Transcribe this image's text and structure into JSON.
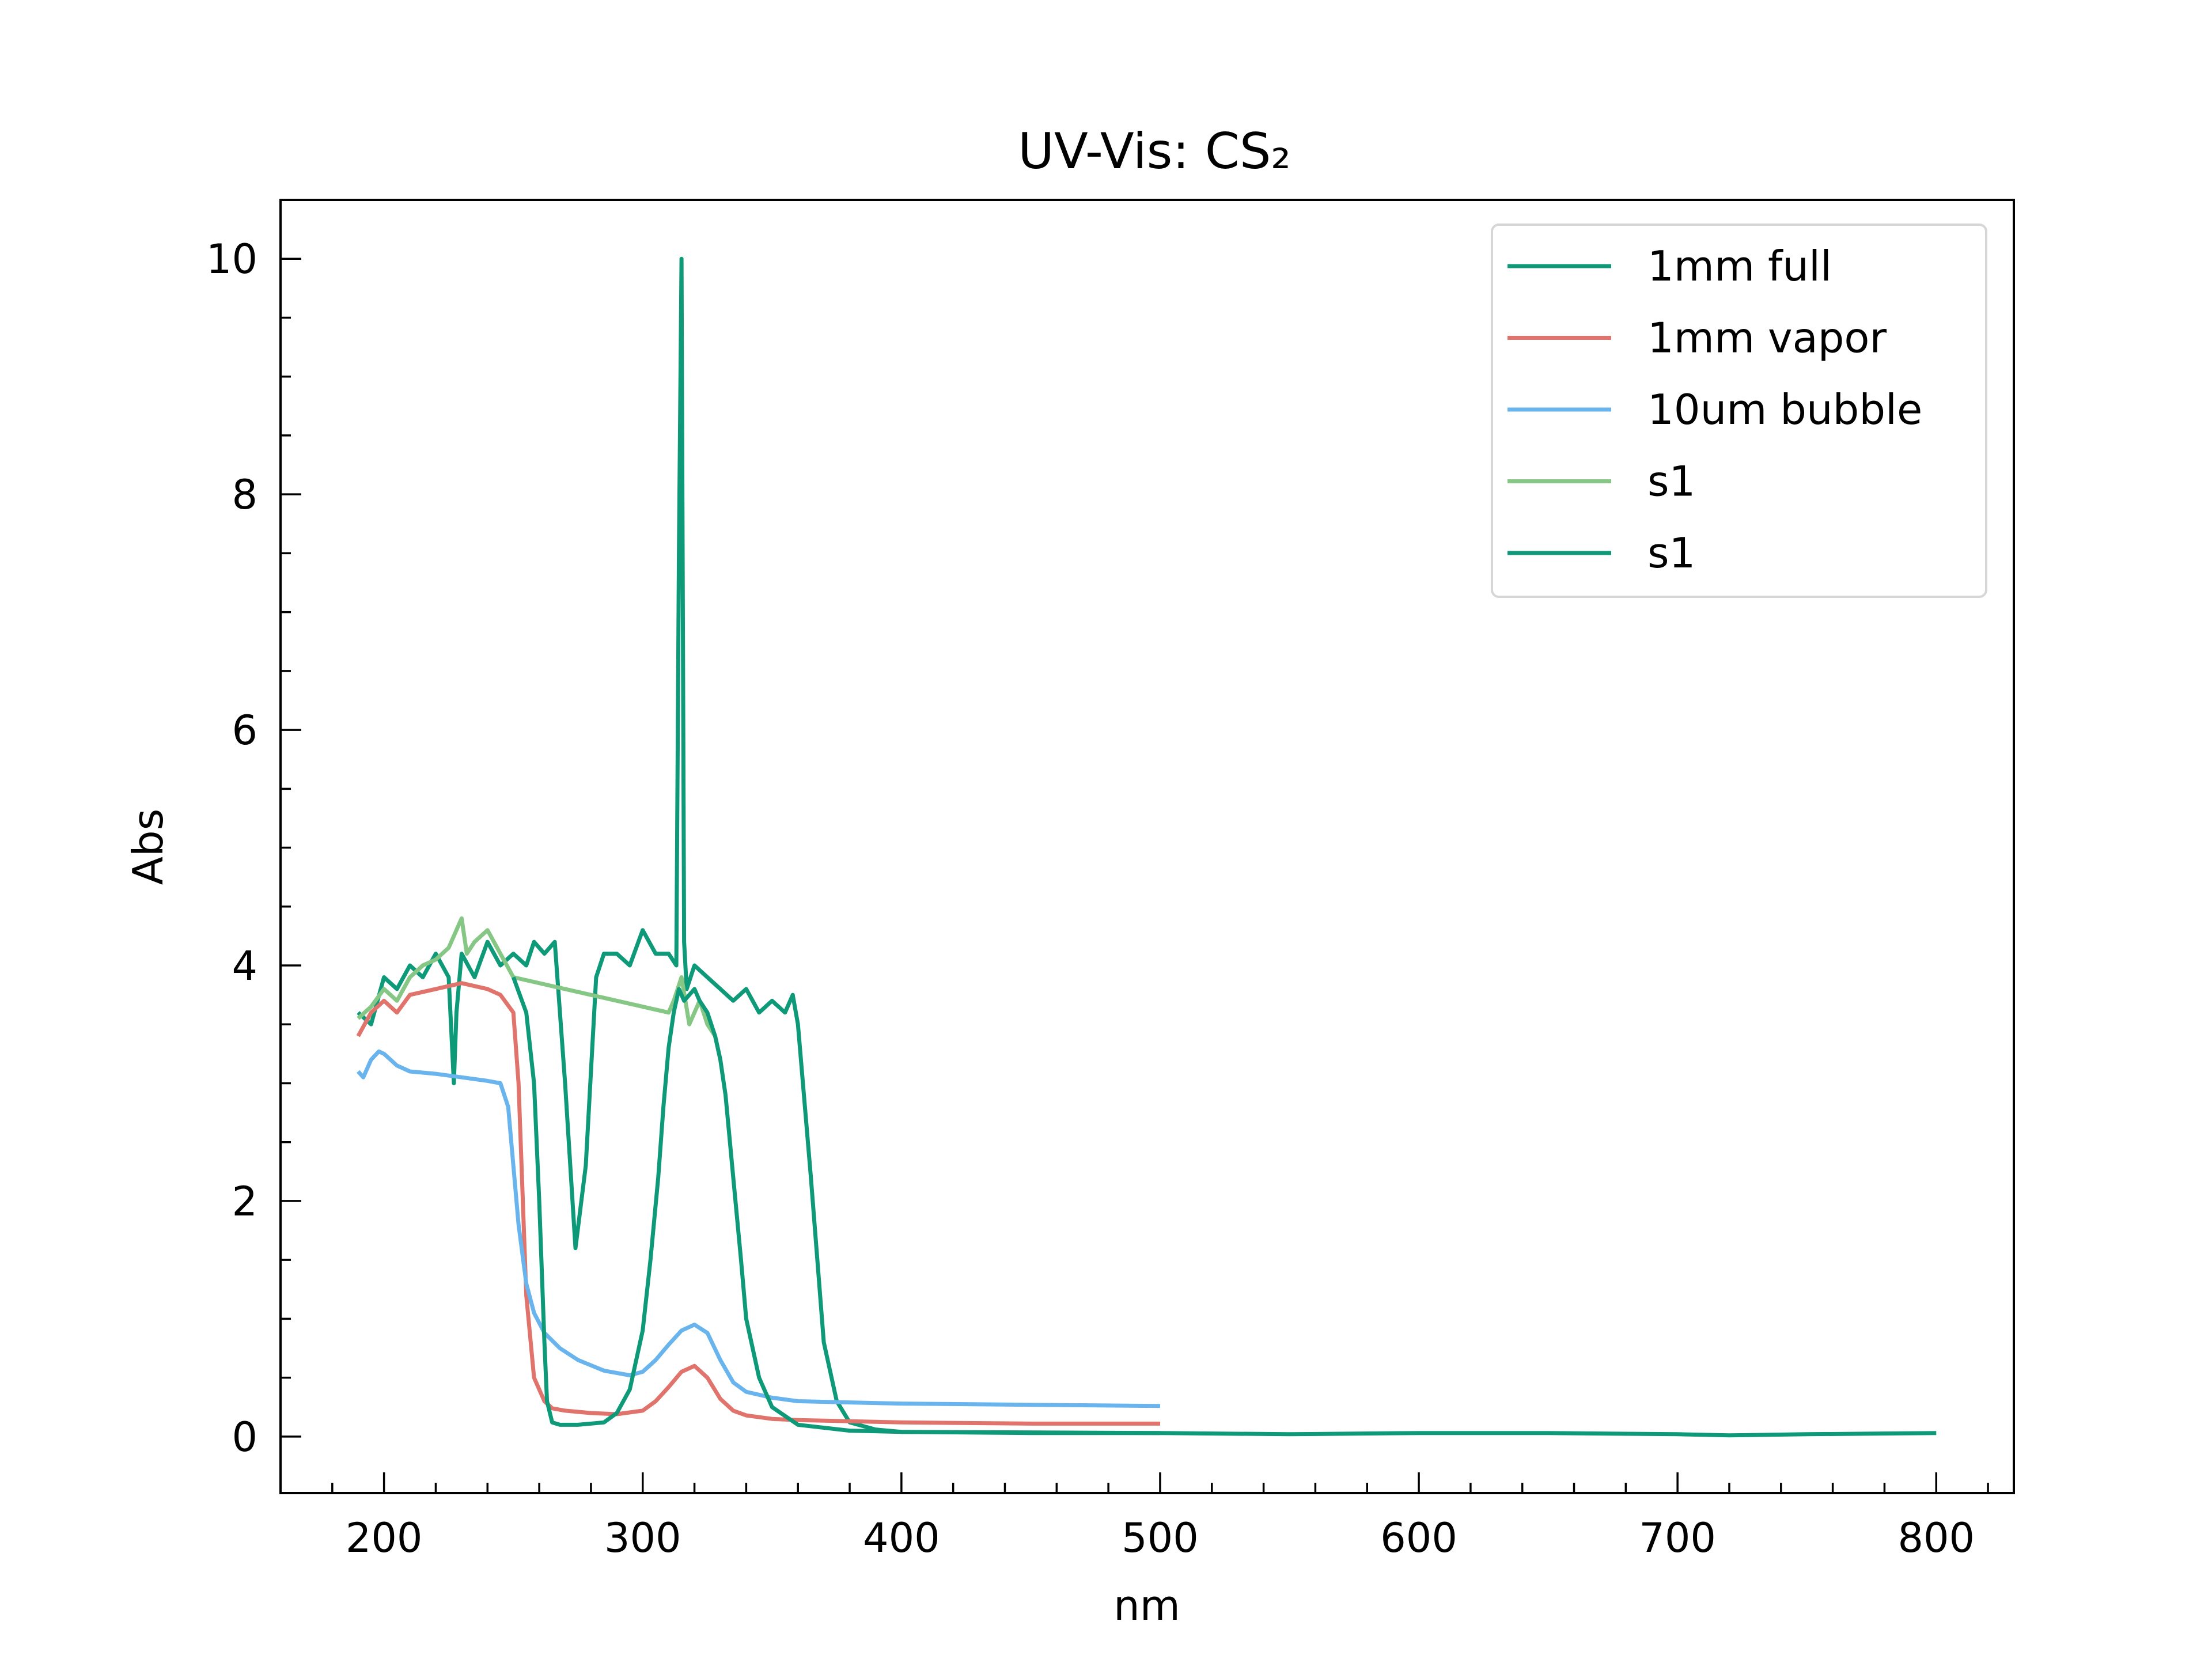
{
  "chart_data": {
    "type": "line",
    "title": "UV-Vis: CS₂",
    "xlabel": "nm",
    "ylabel": "Abs",
    "xlim": [
      160,
      830
    ],
    "ylim": [
      -0.48,
      10.5
    ],
    "xticks": [
      200,
      300,
      400,
      500,
      600,
      700,
      800
    ],
    "yticks": [
      0,
      2,
      4,
      6,
      8,
      10
    ],
    "grid": false,
    "legend_position": "top-right",
    "series": [
      {
        "name": "1mm full",
        "color": "#0e9a78",
        "x": [
          190,
          195,
          200,
          205,
          210,
          215,
          220,
          225,
          227,
          228,
          230,
          235,
          240,
          245,
          250,
          255,
          258,
          262,
          266,
          270,
          274,
          278,
          282,
          285,
          290,
          295,
          300,
          305,
          310,
          313,
          314,
          315,
          316,
          317,
          320,
          325,
          330,
          335,
          340,
          345,
          350,
          355,
          358,
          360,
          365,
          370,
          375,
          380,
          390,
          400,
          450,
          500,
          550,
          600,
          650,
          700,
          720,
          750,
          800
        ],
        "y": [
          3.6,
          3.5,
          3.9,
          3.8,
          4.0,
          3.9,
          4.1,
          3.9,
          3.0,
          3.6,
          4.1,
          3.9,
          4.2,
          4.0,
          4.1,
          4.0,
          4.2,
          4.1,
          4.2,
          3.0,
          1.6,
          2.3,
          3.9,
          4.1,
          4.1,
          4.0,
          4.3,
          4.1,
          4.1,
          4.0,
          7.5,
          10.0,
          4.2,
          3.8,
          4.0,
          3.9,
          3.8,
          3.7,
          3.8,
          3.6,
          3.7,
          3.6,
          3.75,
          3.5,
          2.2,
          0.8,
          0.3,
          0.12,
          0.06,
          0.04,
          0.03,
          0.03,
          0.02,
          0.03,
          0.03,
          0.02,
          0.01,
          0.02,
          0.03
        ]
      },
      {
        "name": "1mm vapor",
        "color": "#e0736c",
        "x": [
          190,
          195,
          200,
          205,
          210,
          220,
          230,
          240,
          245,
          250,
          252,
          255,
          258,
          262,
          265,
          270,
          280,
          290,
          300,
          305,
          310,
          315,
          320,
          325,
          330,
          335,
          340,
          350,
          360,
          380,
          400,
          450,
          500
        ],
        "y": [
          3.4,
          3.6,
          3.7,
          3.6,
          3.75,
          3.8,
          3.85,
          3.8,
          3.75,
          3.6,
          3.0,
          1.2,
          0.5,
          0.3,
          0.24,
          0.22,
          0.2,
          0.19,
          0.22,
          0.3,
          0.42,
          0.55,
          0.6,
          0.5,
          0.32,
          0.22,
          0.18,
          0.15,
          0.14,
          0.13,
          0.12,
          0.11,
          0.11
        ]
      },
      {
        "name": "10um bubble",
        "color": "#6ab4ee",
        "x": [
          190,
          192,
          195,
          198,
          200,
          205,
          210,
          220,
          230,
          240,
          245,
          248,
          250,
          252,
          255,
          258,
          262,
          268,
          275,
          285,
          295,
          300,
          305,
          310,
          315,
          320,
          325,
          330,
          335,
          340,
          350,
          360,
          380,
          400,
          450,
          500
        ],
        "y": [
          3.1,
          3.05,
          3.2,
          3.27,
          3.25,
          3.15,
          3.1,
          3.08,
          3.05,
          3.02,
          3.0,
          2.8,
          2.3,
          1.8,
          1.3,
          1.05,
          0.88,
          0.75,
          0.65,
          0.56,
          0.52,
          0.55,
          0.65,
          0.78,
          0.9,
          0.95,
          0.88,
          0.65,
          0.46,
          0.38,
          0.33,
          0.3,
          0.29,
          0.28,
          0.27,
          0.26
        ]
      },
      {
        "name": "s1",
        "color": "#86c785",
        "x": [
          190,
          195,
          200,
          205,
          210,
          215,
          220,
          225,
          230,
          232,
          235,
          240,
          245,
          250,
          310,
          312,
          315,
          318,
          320,
          322,
          325,
          328,
          330
        ],
        "y": [
          3.55,
          3.65,
          3.8,
          3.7,
          3.9,
          4.0,
          4.05,
          4.15,
          4.4,
          4.1,
          4.2,
          4.3,
          4.1,
          3.9,
          3.6,
          3.7,
          3.9,
          3.5,
          3.6,
          3.7,
          3.5,
          3.4,
          3.2
        ]
      },
      {
        "name": "s1",
        "color": "#0e9a78",
        "x": [
          250,
          255,
          258,
          260,
          262,
          263,
          265,
          268,
          275,
          285,
          290,
          295,
          300,
          303,
          306,
          308,
          310,
          312,
          314,
          316,
          320,
          322,
          325,
          328,
          330,
          332,
          335,
          338,
          340,
          345,
          350,
          360,
          380,
          400,
          500
        ],
        "y": [
          3.9,
          3.6,
          3.0,
          2.0,
          0.8,
          0.3,
          0.12,
          0.1,
          0.1,
          0.12,
          0.2,
          0.4,
          0.9,
          1.5,
          2.2,
          2.8,
          3.3,
          3.6,
          3.8,
          3.7,
          3.8,
          3.7,
          3.6,
          3.4,
          3.2,
          2.9,
          2.2,
          1.5,
          1.0,
          0.5,
          0.25,
          0.1,
          0.05,
          0.04,
          0.03
        ]
      }
    ]
  }
}
